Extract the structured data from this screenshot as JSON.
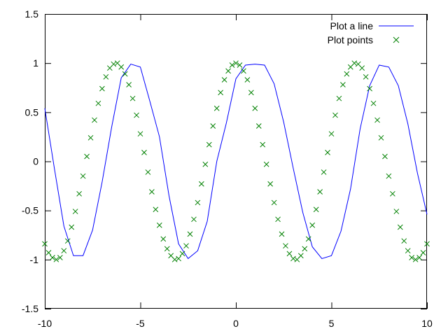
{
  "chart_data": {
    "type": "line",
    "title": "",
    "xlabel": "",
    "ylabel": "",
    "xlim": [
      -10,
      10
    ],
    "ylim": [
      -1.5,
      1.5
    ],
    "grid": false,
    "legend_position": "top-right",
    "x_ticks": [
      "-10",
      "-5",
      "0",
      "5",
      "10"
    ],
    "x_tick_values": [
      -10,
      -5,
      0,
      5,
      10
    ],
    "y_ticks": [
      "1.5",
      "1",
      "0.5",
      "0",
      "-0.5",
      "-1",
      "-1.5"
    ],
    "y_tick_values": [
      1.5,
      1,
      0.5,
      0,
      -0.5,
      -1,
      -1.5
    ],
    "series": [
      {
        "name": "Plot a line",
        "style": "line",
        "color": "#0000ff",
        "x": [
          -10,
          -9.5,
          -9,
          -8.5,
          -8,
          -7.5,
          -7,
          -6.5,
          -6,
          -5.5,
          -5,
          -4.5,
          -4,
          -3.5,
          -3,
          -2.5,
          -2,
          -1.5,
          -1,
          -0.5,
          0,
          0.5,
          1,
          1.5,
          2,
          2.5,
          3,
          3.5,
          4,
          4.5,
          5,
          5.5,
          6,
          6.5,
          7,
          7.5,
          8,
          8.5,
          9,
          9.5,
          10
        ],
        "y": [
          0.54,
          -0.07,
          -0.66,
          -0.96,
          -0.96,
          -0.7,
          -0.21,
          0.35,
          0.85,
          0.99,
          0.96,
          0.61,
          0.25,
          -0.35,
          -0.84,
          -0.99,
          -0.91,
          -0.61,
          0.0,
          0.39,
          0.84,
          0.98,
          0.99,
          0.98,
          0.79,
          0.4,
          -0.07,
          -0.52,
          -0.87,
          -0.99,
          -0.96,
          -0.71,
          -0.28,
          0.33,
          0.77,
          0.98,
          0.96,
          0.77,
          0.38,
          -0.12,
          -0.54
        ]
      },
      {
        "name": "Plot points",
        "style": "points",
        "marker": "x",
        "color": "#008000",
        "x": [
          -10,
          -9.8,
          -9.6,
          -9.4,
          -9.2,
          -9.0,
          -8.8,
          -8.6,
          -8.4,
          -8.2,
          -8.0,
          -7.8,
          -7.6,
          -7.4,
          -7.2,
          -7.0,
          -6.8,
          -6.6,
          -6.4,
          -6.2,
          -6.0,
          -5.8,
          -5.6,
          -5.4,
          -5.2,
          -5.0,
          -4.8,
          -4.6,
          -4.4,
          -4.2,
          -4.0,
          -3.8,
          -3.6,
          -3.4,
          -3.2,
          -3.0,
          -2.8,
          -2.6,
          -2.4,
          -2.2,
          -2.0,
          -1.8,
          -1.6,
          -1.4,
          -1.2,
          -1.0,
          -0.8,
          -0.6,
          -0.4,
          -0.2,
          0.0,
          0.2,
          0.4,
          0.6,
          0.8,
          1.0,
          1.2,
          1.4,
          1.6,
          1.8,
          2.0,
          2.2,
          2.4,
          2.6,
          2.8,
          3.0,
          3.2,
          3.4,
          3.6,
          3.8,
          4.0,
          4.2,
          4.4,
          4.6,
          4.8,
          5.0,
          5.2,
          5.4,
          5.6,
          5.8,
          6.0,
          6.2,
          6.4,
          6.6,
          6.8,
          7.0,
          7.2,
          7.4,
          7.6,
          7.8,
          8.0,
          8.2,
          8.4,
          8.6,
          8.8,
          9.0,
          9.2,
          9.4,
          9.6,
          9.8,
          10.0
        ],
        "y": [
          -0.84,
          -0.93,
          -0.98,
          -1.0,
          -0.98,
          -0.91,
          -0.81,
          -0.67,
          -0.51,
          -0.33,
          -0.15,
          0.05,
          0.24,
          0.42,
          0.59,
          0.74,
          0.86,
          0.95,
          0.99,
          1.0,
          0.96,
          0.89,
          0.78,
          0.64,
          0.47,
          0.28,
          0.09,
          -0.11,
          -0.31,
          -0.49,
          -0.65,
          -0.79,
          -0.89,
          -0.96,
          -1.0,
          -0.99,
          -0.94,
          -0.86,
          -0.74,
          -0.59,
          -0.42,
          -0.23,
          -0.03,
          0.17,
          0.36,
          0.54,
          0.7,
          0.83,
          0.92,
          0.98,
          1.0,
          0.98,
          0.92,
          0.83,
          0.7,
          0.54,
          0.36,
          0.17,
          -0.03,
          -0.23,
          -0.42,
          -0.59,
          -0.74,
          -0.86,
          -0.94,
          -0.99,
          -1.0,
          -0.96,
          -0.89,
          -0.79,
          -0.65,
          -0.49,
          -0.31,
          -0.11,
          0.09,
          0.28,
          0.47,
          0.64,
          0.78,
          0.89,
          0.96,
          1.0,
          0.99,
          0.95,
          0.86,
          0.74,
          0.59,
          0.42,
          0.24,
          0.05,
          -0.15,
          -0.33,
          -0.51,
          -0.67,
          -0.81,
          -0.91,
          -0.98,
          -1.0,
          -0.98,
          -0.93,
          -0.84
        ]
      }
    ]
  }
}
